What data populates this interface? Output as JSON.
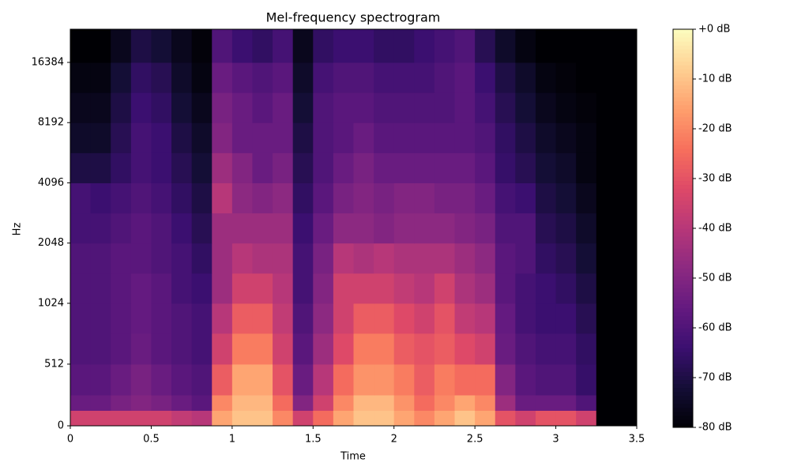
{
  "chart_data": {
    "type": "heatmap",
    "title": "Mel-frequency spectrogram",
    "xlabel": "Time",
    "ylabel": "Hz",
    "xlim": [
      0,
      3.5
    ],
    "xticks": [
      0,
      0.5,
      1,
      1.5,
      2,
      2.5,
      3,
      3.5
    ],
    "ylim": [
      0,
      24000
    ],
    "yticks": [
      0,
      512,
      1024,
      2048,
      4096,
      8192,
      16384
    ],
    "yscale": "symlog",
    "linthresh": 1000,
    "base": 2,
    "colormap": "magma",
    "zlim": [
      -80,
      0
    ],
    "zticks": [
      {
        "value": 0,
        "label": "+0 dB"
      },
      {
        "value": -10,
        "label": "-10 dB"
      },
      {
        "value": -20,
        "label": "-20 dB"
      },
      {
        "value": -30,
        "label": "-30 dB"
      },
      {
        "value": -40,
        "label": "-40 dB"
      },
      {
        "value": -50,
        "label": "-50 dB"
      },
      {
        "value": -60,
        "label": "-60 dB"
      },
      {
        "value": -70,
        "label": "-70 dB"
      },
      {
        "value": -80,
        "label": "-80 dB"
      }
    ],
    "x_edges": [
      0,
      0.125,
      0.25,
      0.375,
      0.5,
      0.625,
      0.75,
      0.875,
      1,
      1.125,
      1.25,
      1.375,
      1.5,
      1.625,
      1.75,
      1.875,
      2,
      2.125,
      2.25,
      2.375,
      2.5,
      2.625,
      2.75,
      2.875,
      3,
      3.125,
      3.25,
      3.375,
      3.5
    ],
    "y_edges": [
      0,
      128,
      256,
      512,
      768,
      1024,
      1448,
      2048,
      2896,
      4096,
      5792,
      8192,
      11585,
      16384,
      24000
    ],
    "z": [
      [
        -35,
        -35,
        -35,
        -35,
        -35,
        -38,
        -40,
        -15,
        -10,
        -10,
        -20,
        -35,
        -25,
        -15,
        -10,
        -10,
        -15,
        -20,
        -15,
        -10,
        -15,
        -30,
        -35,
        -30,
        -30,
        -35,
        -80,
        -80
      ],
      [
        -55,
        -55,
        -52,
        -50,
        -52,
        -55,
        -58,
        -20,
        -12,
        -12,
        -25,
        -50,
        -35,
        -20,
        -12,
        -12,
        -18,
        -25,
        -20,
        -15,
        -20,
        -45,
        -55,
        -55,
        -55,
        -60,
        -80,
        -80
      ],
      [
        -58,
        -58,
        -55,
        -52,
        -55,
        -58,
        -60,
        -28,
        -15,
        -15,
        -30,
        -55,
        -40,
        -25,
        -18,
        -18,
        -22,
        -28,
        -22,
        -25,
        -25,
        -50,
        -58,
        -60,
        -60,
        -65,
        -80,
        -80
      ],
      [
        -60,
        -60,
        -58,
        -55,
        -58,
        -60,
        -62,
        -35,
        -22,
        -22,
        -35,
        -58,
        -45,
        -32,
        -22,
        -22,
        -28,
        -30,
        -28,
        -32,
        -35,
        -55,
        -60,
        -62,
        -62,
        -66,
        -80,
        -80
      ],
      [
        -60,
        -60,
        -58,
        -56,
        -58,
        -60,
        -62,
        -40,
        -28,
        -28,
        -38,
        -60,
        -48,
        -35,
        -28,
        -28,
        -32,
        -35,
        -30,
        -38,
        -40,
        -56,
        -62,
        -64,
        -64,
        -68,
        -80,
        -80
      ],
      [
        -60,
        -60,
        -58,
        -56,
        -58,
        -62,
        -64,
        -45,
        -35,
        -35,
        -40,
        -62,
        -50,
        -35,
        -35,
        -35,
        -38,
        -40,
        -35,
        -42,
        -45,
        -58,
        -62,
        -64,
        -66,
        -70,
        -80,
        -80
      ],
      [
        -60,
        -60,
        -58,
        -58,
        -60,
        -62,
        -66,
        -45,
        -40,
        -42,
        -42,
        -62,
        -52,
        -40,
        -42,
        -40,
        -42,
        -42,
        -42,
        -45,
        -48,
        -58,
        -60,
        -66,
        -68,
        -72,
        -80,
        -80
      ],
      [
        -62,
        -62,
        -60,
        -58,
        -60,
        -64,
        -68,
        -45,
        -45,
        -45,
        -45,
        -64,
        -55,
        -48,
        -48,
        -50,
        -48,
        -48,
        -48,
        -50,
        -52,
        -60,
        -60,
        -68,
        -70,
        -74,
        -80,
        -80
      ],
      [
        -62,
        -64,
        -62,
        -60,
        -62,
        -66,
        -70,
        -40,
        -48,
        -50,
        -48,
        -66,
        -58,
        -52,
        -50,
        -52,
        -50,
        -50,
        -52,
        -52,
        -55,
        -62,
        -64,
        -70,
        -72,
        -76,
        -80,
        -80
      ],
      [
        -70,
        -70,
        -66,
        -62,
        -64,
        -68,
        -72,
        -45,
        -50,
        -55,
        -52,
        -68,
        -60,
        -55,
        -52,
        -55,
        -55,
        -55,
        -55,
        -55,
        -58,
        -65,
        -68,
        -72,
        -74,
        -78,
        -80,
        -80
      ],
      [
        -74,
        -74,
        -68,
        -62,
        -64,
        -70,
        -74,
        -50,
        -55,
        -55,
        -55,
        -70,
        -60,
        -58,
        -55,
        -58,
        -58,
        -58,
        -58,
        -58,
        -60,
        -66,
        -70,
        -74,
        -76,
        -78,
        -80,
        -80
      ],
      [
        -76,
        -76,
        -70,
        -64,
        -66,
        -72,
        -76,
        -52,
        -55,
        -58,
        -55,
        -72,
        -60,
        -58,
        -58,
        -60,
        -60,
        -60,
        -60,
        -58,
        -62,
        -68,
        -72,
        -76,
        -78,
        -79,
        -80,
        -80
      ],
      [
        -78,
        -78,
        -72,
        -66,
        -68,
        -74,
        -78,
        -55,
        -58,
        -60,
        -58,
        -74,
        -62,
        -60,
        -60,
        -62,
        -62,
        -62,
        -60,
        -58,
        -64,
        -70,
        -74,
        -78,
        -79,
        -80,
        -80,
        -80
      ],
      [
        -80,
        -80,
        -76,
        -70,
        -72,
        -76,
        -79,
        -60,
        -64,
        -66,
        -62,
        -76,
        -66,
        -64,
        -64,
        -66,
        -66,
        -64,
        -62,
        -60,
        -68,
        -74,
        -78,
        -80,
        -80,
        -80,
        -80,
        -80
      ]
    ]
  }
}
